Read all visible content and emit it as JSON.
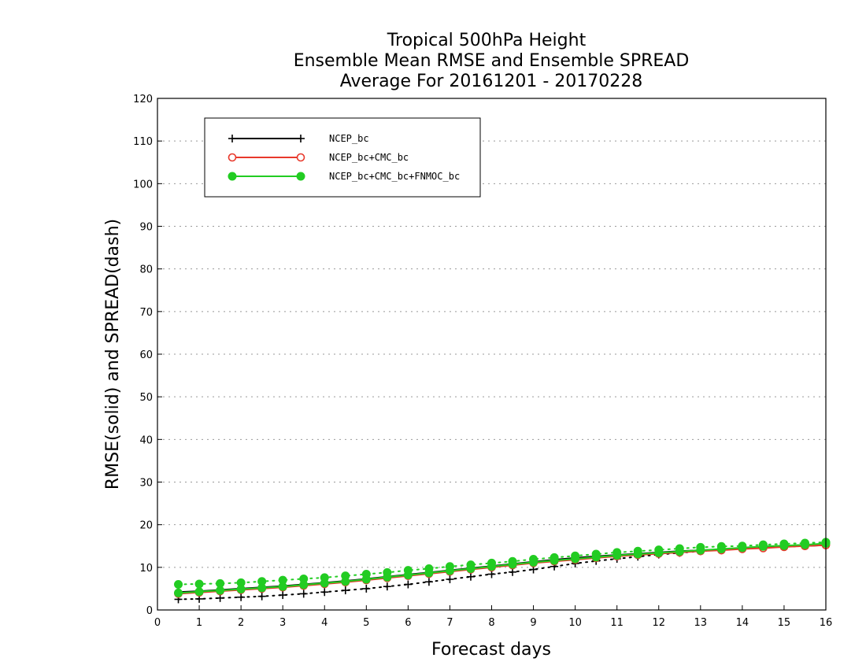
{
  "chart_data": {
    "type": "line",
    "title_lines": [
      "Tropical 500hPa Height",
      "Ensemble Mean RMSE and Ensemble SPREAD",
      "Average For 20161201 - 20170228"
    ],
    "xlabel": "Forecast days",
    "ylabel": "RMSE(solid) and SPREAD(dash)",
    "xlim": [
      0,
      16
    ],
    "ylim": [
      0,
      120
    ],
    "x_ticks": [
      "0",
      "1",
      "2",
      "3",
      "4",
      "5",
      "6",
      "7",
      "8",
      "9",
      "10",
      "11",
      "12",
      "13",
      "14",
      "15",
      "16"
    ],
    "y_ticks": [
      "0",
      "10",
      "20",
      "30",
      "40",
      "50",
      "60",
      "70",
      "80",
      "90",
      "100",
      "110",
      "120"
    ],
    "grid": true,
    "legend_position": "top-left",
    "x": [
      0.5,
      1,
      1.5,
      2,
      2.5,
      3,
      3.5,
      4,
      4.5,
      5,
      5.5,
      6,
      6.5,
      7,
      7.5,
      8,
      8.5,
      9,
      9.5,
      10,
      10.5,
      11,
      11.5,
      12,
      12.5,
      13,
      13.5,
      14,
      14.5,
      15,
      15.5,
      16
    ],
    "series": [
      {
        "name": "NCEP_bc",
        "color": "#000000",
        "marker": "plus",
        "rmse": [
          4.2,
          4.4,
          4.7,
          5.0,
          5.3,
          5.6,
          6.0,
          6.4,
          6.8,
          7.3,
          7.8,
          8.3,
          8.8,
          9.3,
          9.8,
          10.3,
          10.8,
          11.3,
          11.8,
          12.2,
          12.6,
          12.9,
          13.2,
          13.5,
          13.8,
          14.0,
          14.2,
          14.4,
          14.7,
          14.9,
          15.0,
          15.2
        ],
        "spread": [
          2.5,
          2.6,
          2.8,
          3.0,
          3.2,
          3.5,
          3.8,
          4.2,
          4.6,
          5.0,
          5.5,
          6.0,
          6.6,
          7.2,
          7.8,
          8.4,
          8.9,
          9.5,
          10.2,
          10.9,
          11.5,
          12.0,
          12.5,
          13.0,
          13.4,
          13.8,
          14.1,
          14.4,
          14.7,
          15.0,
          15.1,
          15.3
        ]
      },
      {
        "name": "NCEP_bc+CMC_bc",
        "color": "#e8392c",
        "marker": "open-circle",
        "rmse": [
          3.8,
          4.1,
          4.4,
          4.7,
          5.0,
          5.3,
          5.7,
          6.1,
          6.5,
          7.0,
          7.5,
          8.0,
          8.5,
          9.0,
          9.5,
          10.0,
          10.5,
          11.0,
          11.4,
          11.8,
          12.2,
          12.6,
          12.9,
          13.2,
          13.5,
          13.8,
          14.0,
          14.3,
          14.5,
          14.8,
          15.0,
          15.2
        ],
        "spread": [
          4.0,
          4.2,
          4.5,
          4.8,
          5.1,
          5.4,
          5.8,
          6.2,
          6.6,
          7.1,
          7.6,
          8.1,
          8.6,
          9.1,
          9.6,
          10.1,
          10.6,
          11.1,
          11.5,
          11.9,
          12.3,
          12.7,
          13.0,
          13.3,
          13.6,
          13.9,
          14.1,
          14.4,
          14.6,
          14.8,
          15.0,
          15.2
        ]
      },
      {
        "name": "NCEP_bc+CMC_bc+FNMOC_bc",
        "color": "#22cc22",
        "marker": "filled-circle",
        "rmse": [
          4.0,
          4.3,
          4.6,
          4.9,
          5.2,
          5.5,
          5.9,
          6.3,
          6.7,
          7.2,
          7.7,
          8.2,
          8.7,
          9.2,
          9.7,
          10.2,
          10.7,
          11.2,
          11.6,
          12.0,
          12.4,
          12.8,
          13.1,
          13.4,
          13.7,
          14.0,
          14.3,
          14.6,
          14.9,
          15.1,
          15.3,
          15.6
        ],
        "spread": [
          6.0,
          6.1,
          6.2,
          6.4,
          6.7,
          7.0,
          7.3,
          7.6,
          8.0,
          8.4,
          8.8,
          9.3,
          9.7,
          10.2,
          10.6,
          11.0,
          11.4,
          11.9,
          12.3,
          12.7,
          13.1,
          13.5,
          13.8,
          14.1,
          14.4,
          14.7,
          14.9,
          15.0,
          15.3,
          15.5,
          15.7,
          15.9
        ]
      }
    ]
  }
}
